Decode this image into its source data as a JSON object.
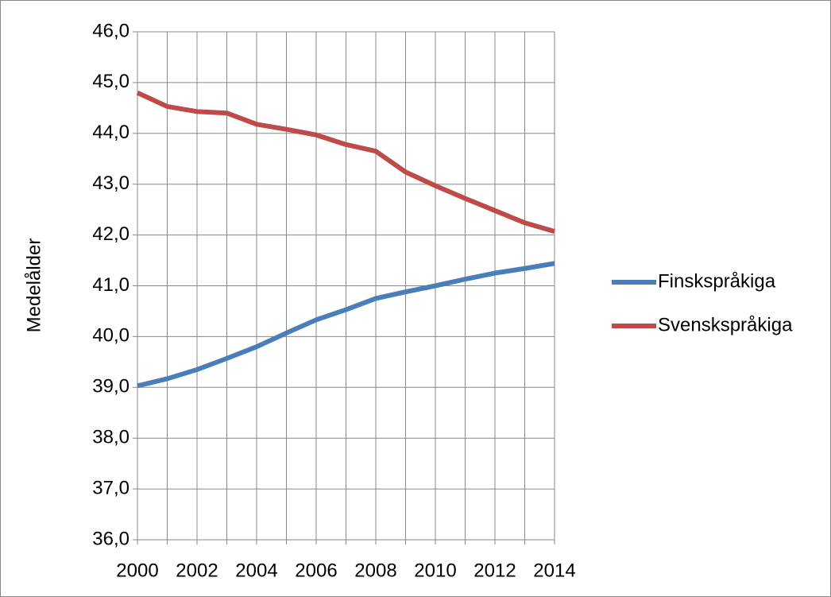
{
  "chart_data": {
    "type": "line",
    "y_label": "Medelålder",
    "categories": [
      2000,
      null,
      2002,
      null,
      2004,
      null,
      2006,
      null,
      2008,
      null,
      2010,
      null,
      2012,
      null,
      2014
    ],
    "series": [
      {
        "name": "Finskspråkiga",
        "color": "#4a7ebb",
        "values": [
          39.03,
          39.17,
          39.35,
          39.57,
          39.8,
          40.07,
          40.33,
          40.53,
          40.75,
          40.88,
          41.0,
          41.13,
          41.25,
          41.34,
          41.44
        ]
      },
      {
        "name": "Svenskspråkiga",
        "color": "#be4b48",
        "values": [
          44.8,
          44.53,
          44.43,
          44.4,
          44.18,
          44.08,
          43.97,
          43.78,
          43.65,
          43.24,
          42.97,
          42.72,
          42.48,
          42.24,
          42.07
        ]
      }
    ],
    "ylim": [
      36,
      46
    ],
    "yticks": [
      {
        "value": 36,
        "label": "36,0"
      },
      {
        "value": 37,
        "label": "37,0"
      },
      {
        "value": 38,
        "label": "38,0"
      },
      {
        "value": 39,
        "label": "39,0"
      },
      {
        "value": 40,
        "label": "40,0"
      },
      {
        "value": 41,
        "label": "41,0"
      },
      {
        "value": 42,
        "label": "42,0"
      },
      {
        "value": 43,
        "label": "43,0"
      },
      {
        "value": 44,
        "label": "44,0"
      },
      {
        "value": 45,
        "label": "45,0"
      },
      {
        "value": 46,
        "label": "46,0"
      }
    ],
    "grid": true,
    "legend": "right"
  }
}
